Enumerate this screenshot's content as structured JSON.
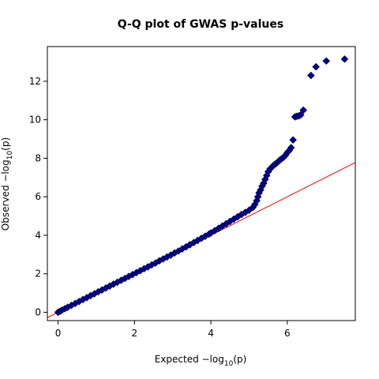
{
  "chart_data": {
    "type": "scatter",
    "title": "Q-Q plot of GWAS p-values",
    "xlabel": {
      "prefix": "Expected  −log",
      "subscript": "10",
      "suffix": "(p)"
    },
    "ylabel": {
      "prefix": "Observed  −log",
      "subscript": "10",
      "suffix": "(p)"
    },
    "xlim": [
      -0.28,
      7.78
    ],
    "ylim": [
      -0.43,
      13.8
    ],
    "xticks": [
      0,
      2,
      4,
      6
    ],
    "yticks": [
      0,
      2,
      4,
      6,
      8,
      10,
      12
    ],
    "marker": "diamond",
    "marker_fill": "#00008b",
    "marker_edge": "#00004a",
    "reference_line": {
      "slope": 1,
      "intercept": 0,
      "color": "#ff0000"
    },
    "grid": false,
    "series": [
      {
        "x": [
          0.0,
          0.05,
          0.1,
          0.18,
          0.25,
          0.35,
          0.45,
          0.55,
          0.65,
          0.75,
          0.85,
          0.95,
          1.05,
          1.15,
          1.25,
          1.35,
          1.45,
          1.55,
          1.65,
          1.75,
          1.85,
          1.95,
          2.05,
          2.15,
          2.25,
          2.35,
          2.45,
          2.55,
          2.65,
          2.75,
          2.85,
          2.95,
          3.05,
          3.15,
          3.25,
          3.35,
          3.45,
          3.55,
          3.65,
          3.75,
          3.85,
          3.95,
          4.0,
          4.1,
          4.2,
          4.3,
          4.4,
          4.5,
          4.6,
          4.7,
          4.8,
          4.9,
          5.0,
          5.1,
          5.15,
          5.2,
          5.23,
          5.26,
          5.3,
          5.34,
          5.38,
          5.42,
          5.46,
          5.5,
          5.55,
          5.6,
          5.65,
          5.7,
          5.75,
          5.8,
          5.85,
          5.9,
          5.95,
          6.0,
          6.05,
          6.1,
          6.15,
          6.2,
          6.25,
          6.3,
          6.35,
          6.42,
          6.62,
          6.75,
          7.02,
          7.5
        ],
        "y": [
          0.0,
          0.05,
          0.11,
          0.19,
          0.26,
          0.36,
          0.46,
          0.56,
          0.66,
          0.76,
          0.86,
          0.96,
          1.06,
          1.16,
          1.26,
          1.36,
          1.46,
          1.56,
          1.66,
          1.76,
          1.86,
          1.96,
          2.06,
          2.16,
          2.26,
          2.36,
          2.46,
          2.56,
          2.67,
          2.77,
          2.87,
          2.97,
          3.08,
          3.18,
          3.29,
          3.4,
          3.51,
          3.62,
          3.73,
          3.84,
          3.95,
          4.06,
          4.12,
          4.24,
          4.36,
          4.48,
          4.6,
          4.72,
          4.84,
          4.96,
          5.08,
          5.19,
          5.3,
          5.45,
          5.6,
          5.8,
          6.0,
          6.2,
          6.35,
          6.55,
          6.7,
          6.9,
          7.1,
          7.3,
          7.45,
          7.55,
          7.65,
          7.72,
          7.8,
          7.9,
          7.97,
          8.05,
          8.15,
          8.3,
          8.4,
          8.55,
          8.95,
          10.15,
          10.18,
          10.2,
          10.25,
          10.5,
          12.3,
          12.75,
          13.05,
          13.15
        ]
      }
    ]
  }
}
